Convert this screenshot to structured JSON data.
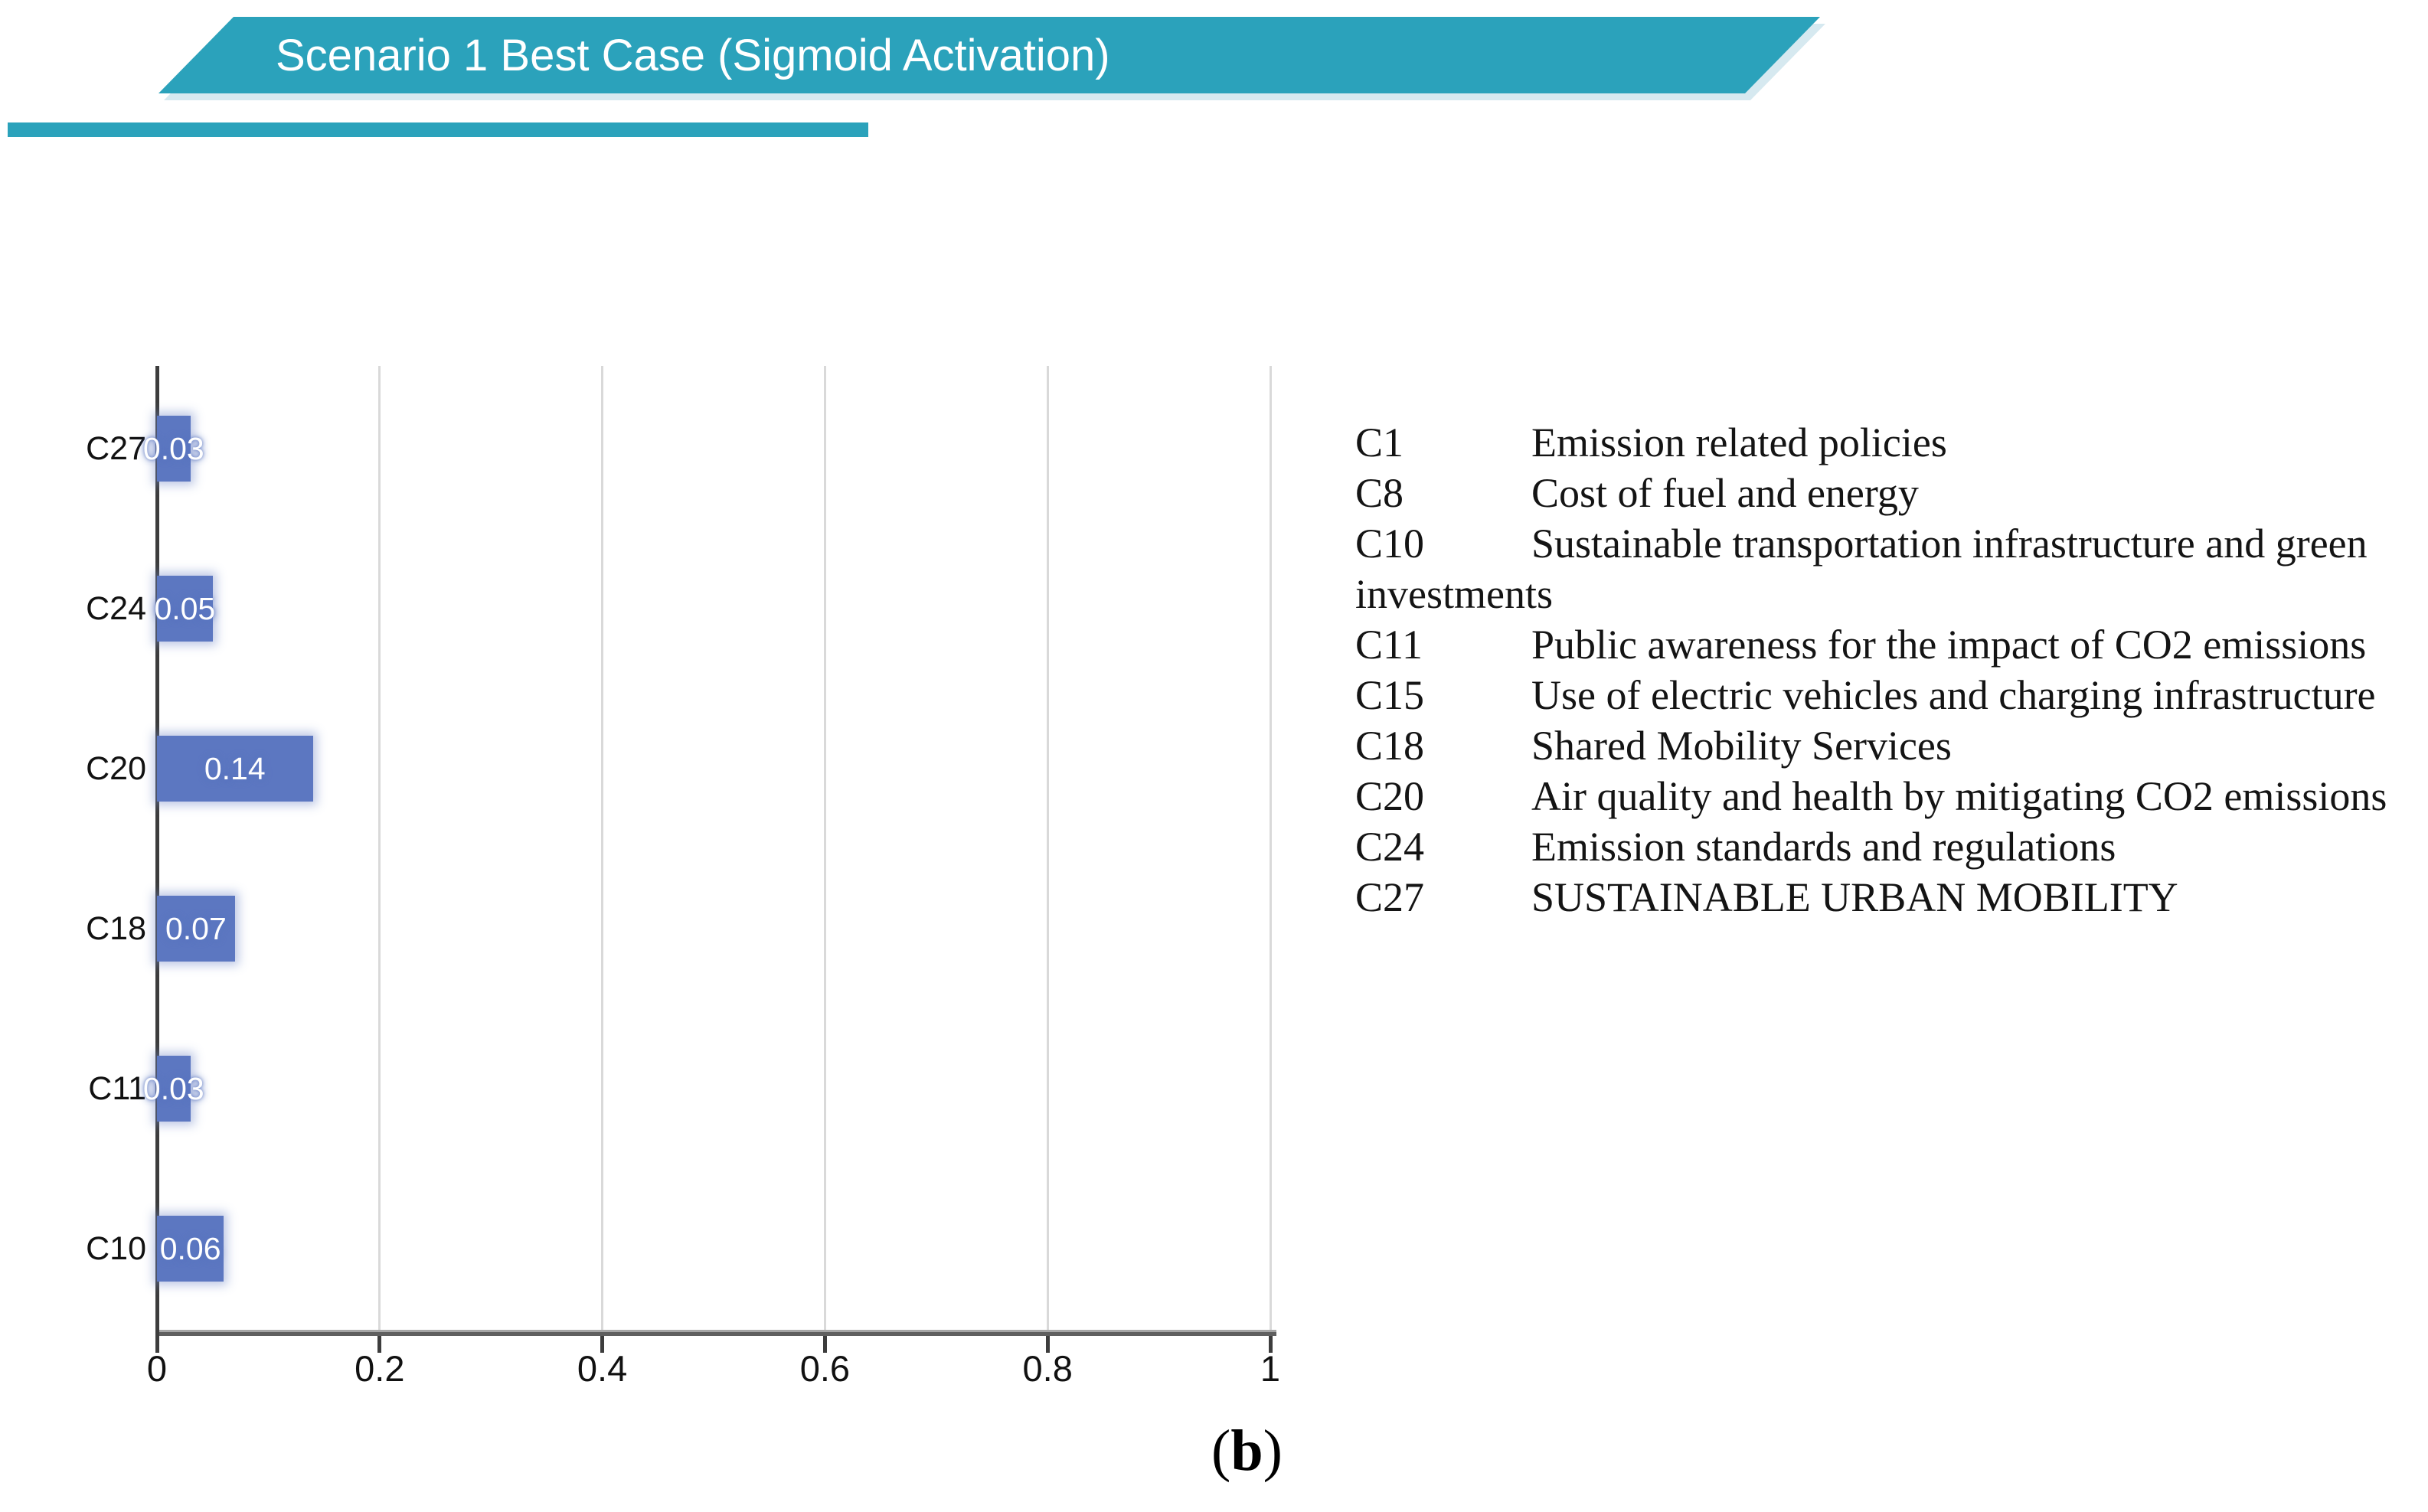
{
  "banner": {
    "title": "Scenario 1 Best Case (Sigmoid Activation)",
    "color": "#2BA2BB"
  },
  "chart_data": {
    "type": "bar",
    "orientation": "horizontal",
    "title": "Scenario 1 Best Case (Sigmoid Activation)",
    "categories": [
      "C27",
      "C24",
      "C20",
      "C18",
      "C11",
      "C10"
    ],
    "values": [
      0.03,
      0.05,
      0.14,
      0.07,
      0.03,
      0.06
    ],
    "data_labels": [
      "0.03",
      "0.05",
      "0.14",
      "0.07",
      "0.03",
      "0.06"
    ],
    "xlabel": "",
    "ylabel": "",
    "xlim": [
      0,
      1
    ],
    "x_ticks": [
      0,
      0.2,
      0.4,
      0.6,
      0.8,
      1
    ],
    "x_tick_labels": [
      "0",
      "0.2",
      "0.4",
      "0.6",
      "0.8",
      "1"
    ],
    "grid": true,
    "gridline_color": "#D9D9D9",
    "bar_color": "#5C77C1",
    "data_label_color": "#FFFFFF"
  },
  "legend": {
    "entries": [
      {
        "code": "C1",
        "text": "Emission related policies"
      },
      {
        "code": "C8",
        "text": "Cost of fuel and energy"
      },
      {
        "code": "C10",
        "text": "Sustainable transportation infrastructure and green investments"
      },
      {
        "code": "C11",
        "text": "Public awareness for the impact of CO2 emissions"
      },
      {
        "code": "C15",
        "text": "Use of electric vehicles and charging infrastructure"
      },
      {
        "code": "C18",
        "text": "Shared Mobility Services"
      },
      {
        "code": "C20",
        "text": "Air quality and health by mitigating CO2 emissions"
      },
      {
        "code": "C24",
        "text": "Emission standards and regulations"
      },
      {
        "code": "C27",
        "text": "SUSTAINABLE URBAN MOBILITY"
      }
    ]
  },
  "caption": {
    "open": "(",
    "letter": "b",
    "close": ")"
  }
}
